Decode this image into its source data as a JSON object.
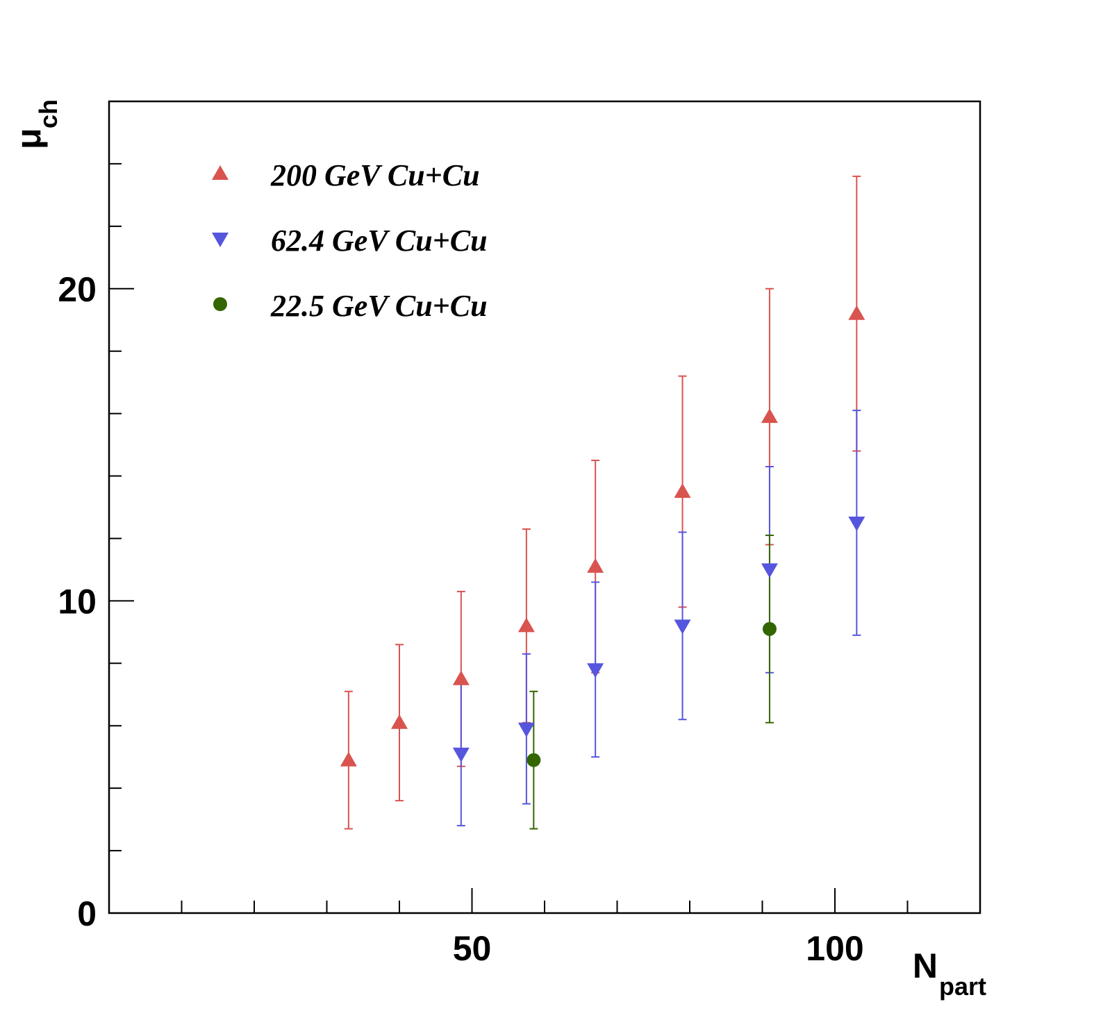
{
  "chart_data": {
    "type": "scatter",
    "xlabel_main": "N",
    "xlabel_sub": "part",
    "ylabel_main": "μ",
    "ylabel_sub": "ch",
    "xlim": [
      0,
      120
    ],
    "ylim": [
      0,
      26
    ],
    "x_major_ticks": [
      50,
      100
    ],
    "x_minor_step": 10,
    "y_major_ticks": [
      0,
      10,
      20
    ],
    "y_minor_step": 2,
    "grid": false,
    "legend_position": "top-left",
    "series": [
      {
        "name": "200 GeV Cu+Cu",
        "marker": "triangle-up",
        "color": "#d9534f",
        "points": [
          {
            "x": 33,
            "y": 4.9,
            "err": 2.2
          },
          {
            "x": 40,
            "y": 6.1,
            "err": 2.5
          },
          {
            "x": 48.5,
            "y": 7.5,
            "err": 2.8
          },
          {
            "x": 57.5,
            "y": 9.2,
            "err": 3.1
          },
          {
            "x": 67,
            "y": 11.1,
            "err": 3.4
          },
          {
            "x": 79,
            "y": 13.5,
            "err": 3.7
          },
          {
            "x": 91,
            "y": 15.9,
            "err": 4.1
          },
          {
            "x": 103,
            "y": 19.2,
            "err": 4.4
          }
        ]
      },
      {
        "name": "62.4 GeV Cu+Cu",
        "marker": "triangle-down",
        "color": "#5555dd",
        "points": [
          {
            "x": 48.5,
            "y": 5.1,
            "err": 2.3
          },
          {
            "x": 57.5,
            "y": 5.9,
            "err": 2.4
          },
          {
            "x": 67,
            "y": 7.8,
            "err": 2.8
          },
          {
            "x": 79,
            "y": 9.2,
            "err": 3.0
          },
          {
            "x": 91,
            "y": 11.0,
            "err": 3.3
          },
          {
            "x": 103,
            "y": 12.5,
            "err": 3.6
          }
        ]
      },
      {
        "name": "22.5 GeV Cu+Cu",
        "marker": "circle",
        "color": "#336600",
        "points": [
          {
            "x": 58.5,
            "y": 4.9,
            "err": 2.2
          },
          {
            "x": 91,
            "y": 9.1,
            "err": 3.0
          }
        ]
      }
    ]
  }
}
